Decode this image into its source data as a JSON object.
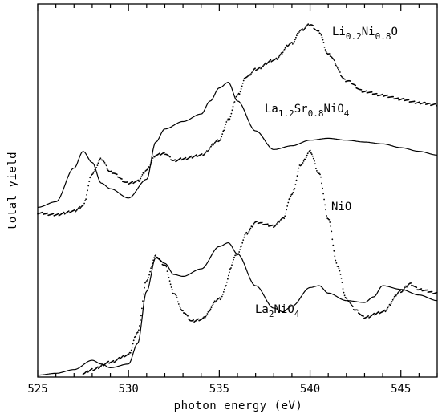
{
  "chart_data": {
    "type": "line",
    "xlabel": "photon energy (eV)",
    "ylabel": "total yield",
    "xlim": [
      525,
      547
    ],
    "ylim": [
      0,
      10
    ],
    "grid": false,
    "x_ticks": [
      525,
      530,
      535,
      540,
      545
    ],
    "x_tick_labels": [
      "525",
      "530",
      "535",
      "540",
      "545"
    ],
    "series": [
      {
        "name": "Li0.2Ni0.8O",
        "label_parts": [
          "Li",
          "0.2",
          "Ni",
          "0.8",
          "O"
        ],
        "style": "dotted",
        "points": [
          [
            525,
            4.4
          ],
          [
            526,
            4.35
          ],
          [
            527,
            4.45
          ],
          [
            527.5,
            4.6
          ],
          [
            528,
            5.45
          ],
          [
            528.5,
            5.85
          ],
          [
            529,
            5.5
          ],
          [
            530,
            5.2
          ],
          [
            530.5,
            5.25
          ],
          [
            531,
            5.55
          ],
          [
            531.5,
            5.95
          ],
          [
            532,
            6.0
          ],
          [
            532.5,
            5.8
          ],
          [
            533,
            5.85
          ],
          [
            534,
            5.95
          ],
          [
            535,
            6.35
          ],
          [
            535.5,
            6.9
          ],
          [
            536,
            7.55
          ],
          [
            536.5,
            8.05
          ],
          [
            537,
            8.25
          ],
          [
            538,
            8.5
          ],
          [
            539,
            8.95
          ],
          [
            539.5,
            9.3
          ],
          [
            540,
            9.45
          ],
          [
            540.5,
            9.25
          ],
          [
            541,
            8.65
          ],
          [
            542,
            7.95
          ],
          [
            543,
            7.65
          ],
          [
            544,
            7.55
          ],
          [
            545,
            7.45
          ],
          [
            546,
            7.35
          ],
          [
            547,
            7.3
          ]
        ]
      },
      {
        "name": "La1.2Sr0.8NiO4",
        "label_parts": [
          "La",
          "1.2",
          "Sr",
          "0.8",
          "NiO",
          "4"
        ],
        "style": "solid",
        "points": [
          [
            525,
            4.55
          ],
          [
            526,
            4.7
          ],
          [
            527,
            5.6
          ],
          [
            527.5,
            6.05
          ],
          [
            528,
            5.75
          ],
          [
            528.5,
            5.2
          ],
          [
            529,
            5.05
          ],
          [
            530,
            4.8
          ],
          [
            531,
            5.3
          ],
          [
            531.5,
            6.3
          ],
          [
            532,
            6.65
          ],
          [
            533,
            6.85
          ],
          [
            534,
            7.05
          ],
          [
            534.5,
            7.4
          ],
          [
            535,
            7.75
          ],
          [
            535.5,
            7.9
          ],
          [
            536,
            7.4
          ],
          [
            537,
            6.6
          ],
          [
            538,
            6.1
          ],
          [
            539,
            6.2
          ],
          [
            540,
            6.35
          ],
          [
            541,
            6.4
          ],
          [
            542,
            6.35
          ],
          [
            543,
            6.3
          ],
          [
            544,
            6.25
          ],
          [
            545,
            6.15
          ],
          [
            546,
            6.05
          ],
          [
            547,
            5.95
          ]
        ]
      },
      {
        "name": "NiO",
        "label_parts": [
          "NiO"
        ],
        "style": "dotted",
        "points": [
          [
            527.5,
            0.1
          ],
          [
            528,
            0.2
          ],
          [
            529,
            0.4
          ],
          [
            530,
            0.6
          ],
          [
            530.5,
            1.2
          ],
          [
            531,
            2.6
          ],
          [
            531.5,
            3.25
          ],
          [
            532,
            3.0
          ],
          [
            532.5,
            2.25
          ],
          [
            533,
            1.75
          ],
          [
            533.5,
            1.5
          ],
          [
            534,
            1.55
          ],
          [
            535,
            2.1
          ],
          [
            536,
            3.3
          ],
          [
            536.5,
            3.85
          ],
          [
            537,
            4.15
          ],
          [
            538,
            4.05
          ],
          [
            538.5,
            4.25
          ],
          [
            539,
            4.9
          ],
          [
            539.5,
            5.7
          ],
          [
            540,
            6.05
          ],
          [
            540.5,
            5.45
          ],
          [
            541,
            4.25
          ],
          [
            541.5,
            3.0
          ],
          [
            542,
            2.1
          ],
          [
            542.5,
            1.8
          ],
          [
            543,
            1.6
          ],
          [
            544,
            1.75
          ],
          [
            545,
            2.3
          ],
          [
            545.5,
            2.5
          ],
          [
            546,
            2.35
          ],
          [
            547,
            2.25
          ]
        ]
      },
      {
        "name": "La2NiO4",
        "label_parts": [
          "La",
          "2",
          "NiO",
          "4"
        ],
        "style": "solid",
        "points": [
          [
            525,
            0.05
          ],
          [
            526,
            0.1
          ],
          [
            527,
            0.2
          ],
          [
            528,
            0.45
          ],
          [
            528.5,
            0.35
          ],
          [
            529,
            0.25
          ],
          [
            530,
            0.35
          ],
          [
            530.5,
            0.9
          ],
          [
            531,
            2.3
          ],
          [
            531.5,
            3.2
          ],
          [
            532,
            3.05
          ],
          [
            532.5,
            2.75
          ],
          [
            533,
            2.7
          ],
          [
            534,
            2.9
          ],
          [
            535,
            3.5
          ],
          [
            535.5,
            3.6
          ],
          [
            536,
            3.3
          ],
          [
            537,
            2.45
          ],
          [
            538,
            1.85
          ],
          [
            538.5,
            1.75
          ],
          [
            539,
            1.9
          ],
          [
            540,
            2.4
          ],
          [
            540.5,
            2.45
          ],
          [
            541,
            2.25
          ],
          [
            542,
            2.05
          ],
          [
            543,
            2.0
          ],
          [
            543.5,
            2.15
          ],
          [
            544,
            2.45
          ],
          [
            545,
            2.35
          ],
          [
            546,
            2.2
          ],
          [
            547,
            2.05
          ]
        ]
      }
    ]
  }
}
